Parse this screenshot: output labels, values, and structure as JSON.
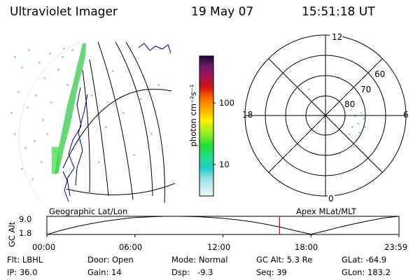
{
  "header": {
    "instrument": "Ultraviolet Imager",
    "date": "19 May 07",
    "time": "15:51:18 UT"
  },
  "colorbar": {
    "unit_label": "photon cm⁻²s⁻¹",
    "ticks": [
      "100",
      "10"
    ]
  },
  "polar_plot": {
    "mlt_labels": [
      "12",
      "18",
      "6",
      "0"
    ],
    "lat_labels": [
      "60",
      "70",
      "80"
    ]
  },
  "panel_labels": {
    "left": "Geographic Lat/Lon",
    "right": "Apex MLat/MLT"
  },
  "chart_data": {
    "type": "line",
    "title": "",
    "ylabel": "GC Alt",
    "yticks": [
      "9.0",
      "1.8"
    ],
    "ylim": [
      1.8,
      9.0
    ],
    "xticks": [
      "00:00",
      "06:00",
      "12:00",
      "18:00",
      "23:59"
    ],
    "x_hours": [
      0,
      1,
      2,
      3,
      4,
      5,
      6,
      7,
      8,
      9,
      10,
      11,
      12,
      13,
      14,
      15,
      16,
      17,
      18,
      19,
      20,
      21,
      22,
      23,
      23.98
    ],
    "series": [
      {
        "values": [
          1.8,
          3.5,
          4.9,
          6.1,
          7.1,
          7.9,
          8.5,
          8.8,
          9.0,
          9.0,
          8.9,
          8.6,
          8.2,
          7.6,
          6.8,
          5.8,
          4.6,
          3.2,
          1.9,
          3.3,
          4.8,
          6.1,
          7.3,
          8.4,
          9.0
        ]
      }
    ],
    "current_time_marker_hour": 15.86
  },
  "status": {
    "flt": "Flt: LBHL",
    "ip": "IP: 36.0",
    "door": "Door: Open",
    "gain": "Gain: 14",
    "mode": "Mode: Normal",
    "dsp": "Dsp:   -9.3",
    "gcalt": "GC Alt: 5.3 Re",
    "seq": "Seq: 39",
    "glat": "GLat: -64.9",
    "glon": "GLon: 183.2"
  }
}
